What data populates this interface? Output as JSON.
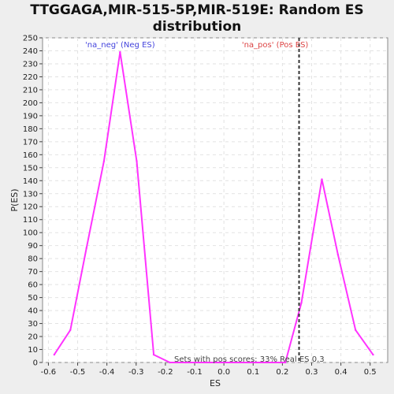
{
  "title_line1": "TTGGAGA,MIR-515-5P,MIR-519E: Random ES",
  "title_line2": "distribution",
  "chart_data": {
    "type": "line",
    "xlabel": "ES",
    "ylabel": "P(ES)",
    "xlim": [
      -0.62,
      0.56
    ],
    "ylim": [
      0,
      250
    ],
    "xticks": [
      -0.6,
      -0.5,
      -0.4,
      -0.3,
      -0.2,
      -0.1,
      0.0,
      0.1,
      0.2,
      0.3,
      0.4,
      0.5
    ],
    "xtick_labels": [
      "-0.6",
      "-0.5",
      "-0.4",
      "-0.3",
      "-0.2",
      "-0.1",
      "0.0",
      "0.1",
      "0.2",
      "0.3",
      "0.4",
      "0.5"
    ],
    "yticks": [
      0,
      10,
      20,
      30,
      40,
      50,
      60,
      70,
      80,
      90,
      100,
      110,
      120,
      130,
      140,
      150,
      160,
      170,
      180,
      190,
      200,
      210,
      220,
      230,
      240,
      250
    ],
    "grid": true,
    "series": [
      {
        "color": "#ff33ff",
        "x": [
          -0.58,
          -0.525,
          -0.47,
          -0.41,
          -0.355,
          -0.298,
          -0.24,
          -0.185,
          -0.13,
          0.21,
          0.265,
          0.335,
          0.39,
          0.45,
          0.51
        ],
        "y": [
          6,
          25,
          88,
          155,
          239,
          155,
          6,
          0,
          0,
          0,
          46,
          141,
          83,
          25,
          6
        ]
      }
    ],
    "vline": {
      "x": 0.257,
      "color": "#333333",
      "style": "dashed"
    },
    "annotations": [
      {
        "text": "'na_neg' (Neg ES)",
        "x": -0.355,
        "y": 245,
        "color": "#4444dd"
      },
      {
        "text": "'na_pos' (Pos ES)",
        "x": 0.175,
        "y": 245,
        "color": "#dd4444"
      },
      {
        "text": "Sets with pos scores: 33% Real ES 0.3",
        "x": -0.17,
        "y": 3,
        "color": "#444444"
      }
    ]
  }
}
